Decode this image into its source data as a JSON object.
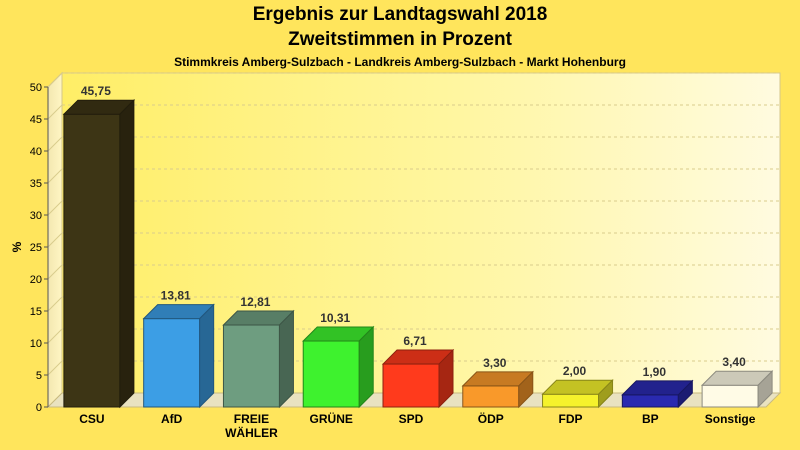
{
  "chart_data": {
    "type": "bar",
    "title": "Ergebnis zur Landtagswahl 2018",
    "subtitle": "Zweitstimmen in Prozent",
    "subsubtitle": "Stimmkreis Amberg-Sulzbach - Landkreis Amberg-Sulzbach - Markt Hohenburg",
    "ylabel": "%",
    "ylim": [
      0,
      50
    ],
    "yticks": [
      0,
      5,
      10,
      15,
      20,
      25,
      30,
      35,
      40,
      45,
      50
    ],
    "grid": true,
    "categories": [
      "CSU",
      "AfD",
      "FREIE WÄHLER",
      "GRÜNE",
      "SPD",
      "ÖDP",
      "FDP",
      "BP",
      "Sonstige"
    ],
    "category_lines": [
      [
        "CSU"
      ],
      [
        "AfD"
      ],
      [
        "FREIE",
        "WÄHLER"
      ],
      [
        "GRÜNE"
      ],
      [
        "SPD"
      ],
      [
        "ÖDP"
      ],
      [
        "FDP"
      ],
      [
        "BP"
      ],
      [
        "Sonstige"
      ]
    ],
    "values": [
      45.75,
      13.81,
      12.81,
      10.31,
      6.71,
      3.3,
      2.0,
      1.9,
      3.4
    ],
    "value_labels": [
      "45,75",
      "13,81",
      "12,81",
      "10,31",
      "6,71",
      "3,30",
      "2,00",
      "1,90",
      "3,40"
    ],
    "colors": [
      "#3d3515",
      "#3c9ee5",
      "#6e9d80",
      "#3ef22e",
      "#ff3a1c",
      "#f9992a",
      "#f5f22c",
      "#2a2ab0",
      "#fffbe6"
    ]
  }
}
